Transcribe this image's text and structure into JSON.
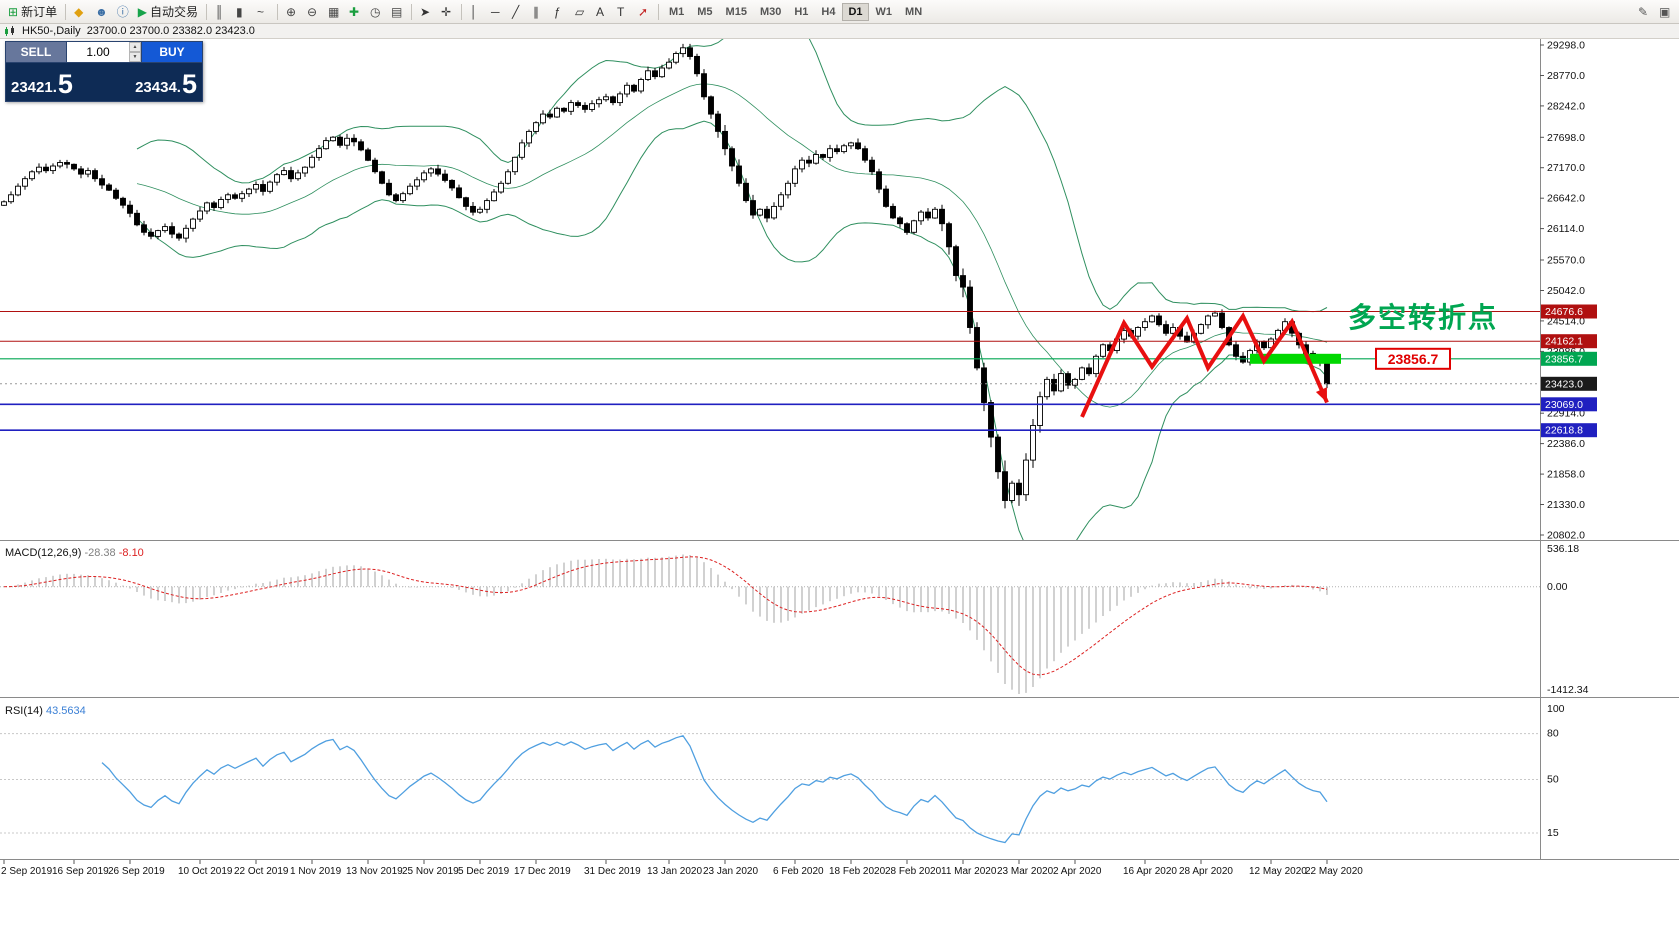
{
  "window_bar": {
    "title": "HK50-,Daily",
    "ohlc": "23700.0 23700.0 23382.0 23423.0"
  },
  "toolbar": {
    "items": [
      {
        "name": "new-order-button",
        "icon": "new-order-icon",
        "glyph": "⊞",
        "color": "#1a9e3f",
        "label": "新订单"
      },
      {
        "sep": true
      },
      {
        "name": "market-watch-button",
        "icon": "market-watch-icon",
        "glyph": "◆",
        "color": "#e0a010"
      },
      {
        "name": "accounts-button",
        "icon": "account-icon",
        "glyph": "☻",
        "color": "#3a6ea5"
      },
      {
        "name": "info-button",
        "icon": "info-icon",
        "glyph": "ⓘ",
        "color": "#3a6ea5"
      },
      {
        "name": "autotrading-button",
        "icon": "play-icon",
        "glyph": "▶",
        "color": "#16a34a",
        "label": "自动交易"
      },
      {
        "sep": true
      },
      {
        "name": "bar-chart-button",
        "icon": "bar-chart-icon",
        "glyph": "║",
        "color": "#444"
      },
      {
        "name": "candle-chart-button",
        "icon": "candlestick-icon",
        "glyph": "▮",
        "color": "#444"
      },
      {
        "name": "line-chart-button",
        "icon": "line-chart-icon",
        "glyph": "~",
        "color": "#444"
      },
      {
        "sep": true
      },
      {
        "name": "zoom-in-button",
        "icon": "zoom-in-icon",
        "glyph": "⊕",
        "color": "#444"
      },
      {
        "name": "zoom-out-button",
        "icon": "zoom-out-icon",
        "glyph": "⊖",
        "color": "#444"
      },
      {
        "name": "tile-windows-button",
        "icon": "tile-windows-icon",
        "glyph": "▦",
        "color": "#444"
      },
      {
        "name": "indicators-button",
        "icon": "add-indicator-icon",
        "glyph": "✚",
        "color": "#1a9e3f"
      },
      {
        "name": "periods-button",
        "icon": "periods-icon",
        "glyph": "◷",
        "color": "#444"
      },
      {
        "name": "templates-button",
        "icon": "templates-icon",
        "glyph": "▤",
        "color": "#444"
      },
      {
        "sep": true
      },
      {
        "name": "cursor-button",
        "icon": "cursor-icon",
        "glyph": "➤",
        "color": "#333"
      },
      {
        "name": "crosshair-button",
        "icon": "crosshair-icon",
        "glyph": "✛",
        "color": "#333"
      },
      {
        "sep": true
      },
      {
        "name": "vertical-line-button",
        "icon": "vertical-line-icon",
        "glyph": "│",
        "color": "#333"
      },
      {
        "name": "horizontal-line-button",
        "icon": "horizontal-line-icon",
        "glyph": "─",
        "color": "#333"
      },
      {
        "name": "trendline-button",
        "icon": "trendline-icon",
        "glyph": "╱",
        "color": "#333"
      },
      {
        "name": "channel-button",
        "icon": "channel-icon",
        "glyph": "∥",
        "color": "#333"
      },
      {
        "name": "fibonacci-button",
        "icon": "fibonacci-icon",
        "glyph": "ƒ",
        "color": "#333"
      },
      {
        "name": "shapes-button",
        "icon": "shapes-icon",
        "glyph": "▱",
        "color": "#333"
      },
      {
        "name": "text-button",
        "icon": "text-icon",
        "glyph": "A",
        "color": "#333"
      },
      {
        "name": "label-button",
        "icon": "label-icon",
        "glyph": "T",
        "color": "#333"
      },
      {
        "name": "arrows-button",
        "icon": "arrow-object-icon",
        "glyph": "➚",
        "color": "#c22222"
      },
      {
        "sep": true
      }
    ],
    "timeframes": [
      "M1",
      "M5",
      "M15",
      "M30",
      "H1",
      "H4",
      "D1",
      "W1",
      "MN"
    ],
    "active_timeframe": "D1",
    "right_items": [
      {
        "name": "chart-properties-button",
        "icon": "pencil-icon",
        "glyph": "✎",
        "color": "#555"
      },
      {
        "name": "docking-button",
        "icon": "window-icon",
        "glyph": "▣",
        "color": "#555"
      }
    ]
  },
  "trade_panel": {
    "sell_label": "SELL",
    "buy_label": "BUY",
    "volume": "1.00",
    "sell_price": "23421.5",
    "buy_price": "23434.5"
  },
  "chart_data": {
    "type": "candlestick",
    "symbol": "HK50",
    "timeframe": "Daily",
    "y_ticks": [
      "29298.0",
      "28770.0",
      "28242.0",
      "27698.0",
      "27170.0",
      "26642.0",
      "26114.0",
      "25570.0",
      "25042.0",
      "24514.0",
      "23986.0",
      "22914.0",
      "22386.0",
      "21858.0",
      "21330.0",
      "20802.0"
    ],
    "x_labels": [
      {
        "idx": 0,
        "label": "2 Sep 2019"
      },
      {
        "idx": 10,
        "label": "16 Sep 2019"
      },
      {
        "idx": 18,
        "label": "26 Sep 2019"
      },
      {
        "idx": 28,
        "label": "10 Oct 2019"
      },
      {
        "idx": 36,
        "label": "22 Oct 2019"
      },
      {
        "idx": 44,
        "label": "1 Nov 2019"
      },
      {
        "idx": 52,
        "label": "13 Nov 2019"
      },
      {
        "idx": 60,
        "label": "25 Nov 2019"
      },
      {
        "idx": 68,
        "label": "5 Dec 2019"
      },
      {
        "idx": 76,
        "label": "17 Dec 2019"
      },
      {
        "idx": 86,
        "label": "31 Dec 2019"
      },
      {
        "idx": 95,
        "label": "13 Jan 2020"
      },
      {
        "idx": 103,
        "label": "23 Jan 2020"
      },
      {
        "idx": 113,
        "label": "6 Feb 2020"
      },
      {
        "idx": 121,
        "label": "18 Feb 2020"
      },
      {
        "idx": 129,
        "label": "28 Feb 2020"
      },
      {
        "idx": 137,
        "label": "11 Mar 2020"
      },
      {
        "idx": 145,
        "label": "23 Mar 2020"
      },
      {
        "idx": 153,
        "label": "2 Apr 2020"
      },
      {
        "idx": 163,
        "label": "16 Apr 2020"
      },
      {
        "idx": 171,
        "label": "28 Apr 2020"
      },
      {
        "idx": 181,
        "label": "12 May 2020"
      },
      {
        "idx": 189,
        "label": "22 May 2020"
      }
    ],
    "closes": [
      26580,
      26700,
      26850,
      26980,
      27100,
      27180,
      27120,
      27200,
      27260,
      27230,
      27150,
      27060,
      27120,
      26980,
      26870,
      26780,
      26640,
      26520,
      26380,
      26180,
      26050,
      25980,
      26080,
      26150,
      26020,
      25950,
      26120,
      26280,
      26420,
      26560,
      26480,
      26620,
      26700,
      26640,
      26720,
      26800,
      26880,
      26760,
      26920,
      27050,
      27120,
      26980,
      27080,
      27180,
      27350,
      27500,
      27640,
      27700,
      27560,
      27680,
      27620,
      27480,
      27300,
      27100,
      26900,
      26700,
      26600,
      26720,
      26850,
      26960,
      27080,
      27150,
      27060,
      26950,
      26820,
      26650,
      26500,
      26400,
      26450,
      26600,
      26750,
      26900,
      27100,
      27350,
      27600,
      27800,
      27950,
      28100,
      28050,
      28200,
      28150,
      28300,
      28250,
      28180,
      28280,
      28350,
      28400,
      28300,
      28450,
      28600,
      28500,
      28700,
      28850,
      28750,
      28900,
      29000,
      29150,
      29250,
      29100,
      28800,
      28400,
      28100,
      27800,
      27500,
      27200,
      26900,
      26600,
      26350,
      26450,
      26300,
      26500,
      26700,
      26900,
      27150,
      27300,
      27250,
      27400,
      27350,
      27500,
      27450,
      27550,
      27600,
      27500,
      27300,
      27100,
      26800,
      26500,
      26300,
      26200,
      26050,
      26250,
      26400,
      26300,
      26450,
      26200,
      25800,
      25300,
      25100,
      24400,
      23700,
      23100,
      22500,
      21900,
      21400,
      21700,
      21500,
      22100,
      22700,
      23200,
      23500,
      23300,
      23600,
      23400,
      23500,
      23700,
      23600,
      23900,
      24100,
      24000,
      24200,
      24350,
      24250,
      24400,
      24500,
      24600,
      24450,
      24300,
      24400,
      24250,
      24150,
      24300,
      24450,
      24600,
      24650,
      24400,
      24100,
      23900,
      23800,
      24000,
      24150,
      24050,
      24200,
      24350,
      24500,
      24300,
      24100,
      23950,
      23850,
      23800,
      23423
    ],
    "bollinger": {
      "period": 20,
      "deviation": 2
    },
    "levels": [
      {
        "price": 24676.6,
        "color": "#b01010",
        "width": 1
      },
      {
        "price": 24162.1,
        "color": "#b01010",
        "width": 1
      },
      {
        "price": 23856.7,
        "color": "#00a651",
        "width": 1.2
      },
      {
        "price": 23069.0,
        "color": "#2020c0",
        "width": 1.6
      },
      {
        "price": 22618.8,
        "color": "#2020c0",
        "width": 1.6
      }
    ],
    "current_price": 23423.0,
    "annotations": {
      "turning_text": {
        "text": "多空转折点",
        "x_idx": 192,
        "price": 24410,
        "color": "#00a651"
      },
      "level_label": {
        "text": "23856.7",
        "x_idx": 196,
        "price": 23856.7,
        "color": "#e00000"
      },
      "green_zone": {
        "from_idx": 178,
        "to_idx": 191,
        "price": 23856.7,
        "color": "#00d800"
      },
      "arrow": {
        "color": "#e81010",
        "points": [
          [
            154,
            22850
          ],
          [
            160,
            24480
          ],
          [
            164,
            23720
          ],
          [
            169,
            24560
          ],
          [
            172,
            23700
          ],
          [
            177,
            24600
          ],
          [
            180,
            23820
          ],
          [
            184,
            24500
          ],
          [
            189,
            23100
          ]
        ]
      }
    }
  },
  "macd": {
    "label": "MACD(12,26,9)",
    "main_value": "-28.38",
    "signal_value": "-8.10",
    "params": {
      "fast": 12,
      "slow": 26,
      "signal": 9
    },
    "scale": {
      "max": "536.18",
      "zero": "0.00",
      "min": "-1412.34"
    }
  },
  "rsi": {
    "label": "RSI(14)",
    "value": "43.5634",
    "period": 14,
    "scale_labels": [
      "100",
      "80",
      "50",
      "15"
    ],
    "levels": [
      80,
      50,
      15
    ]
  }
}
